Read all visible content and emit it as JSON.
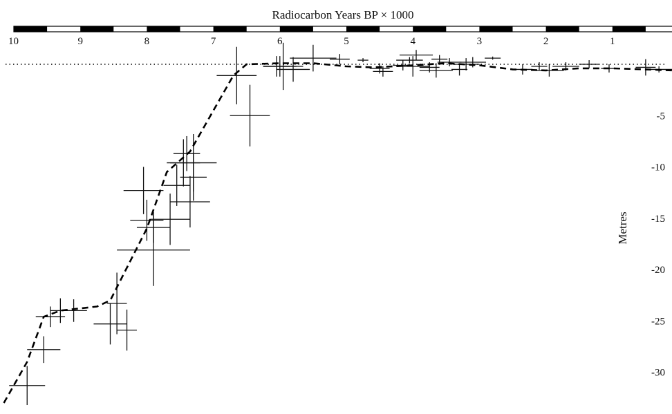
{
  "chart_data": {
    "type": "scatter",
    "title": "",
    "xlabel": "Radiocarbon Years BP × 1000",
    "ylabel": "Metres",
    "xlim": [
      10,
      0
    ],
    "ylim": [
      -32.7,
      0.0
    ],
    "x_ticks": [
      10,
      9,
      8,
      7,
      6,
      5,
      4,
      3,
      2,
      1
    ],
    "y_ticks": [
      -5,
      -10,
      -15,
      -20,
      -25,
      -30
    ],
    "reference_line": {
      "y": 0,
      "style": "dotted"
    },
    "trend_line": {
      "style": "dashed",
      "points": [
        [
          10.15,
          -33.0
        ],
        [
          9.8,
          -29.0
        ],
        [
          9.55,
          -24.6
        ],
        [
          9.3,
          -24.0
        ],
        [
          8.75,
          -23.6
        ],
        [
          8.55,
          -23.0
        ],
        [
          8.0,
          -16.0
        ],
        [
          7.7,
          -10.5
        ],
        [
          7.35,
          -8.5
        ],
        [
          6.7,
          -1.1
        ],
        [
          6.5,
          0.0
        ],
        [
          6.0,
          0.1
        ],
        [
          5.5,
          0.1
        ],
        [
          5.0,
          -0.2
        ],
        [
          4.6,
          -0.3
        ],
        [
          4.0,
          -0.1
        ],
        [
          3.5,
          0.1
        ],
        [
          3.0,
          -0.1
        ],
        [
          2.5,
          -0.5
        ],
        [
          2.0,
          -0.6
        ],
        [
          1.5,
          -0.4
        ],
        [
          1.0,
          -0.4
        ],
        [
          0.5,
          -0.5
        ],
        [
          0.1,
          -0.6
        ]
      ]
    },
    "series": [
      {
        "points": [
          {
            "x": 9.8,
            "y": -31.3,
            "xerr": 0.27,
            "yerr": 1.9
          },
          {
            "x": 9.55,
            "y": -27.8,
            "xerr": 0.25,
            "yerr": 1.3
          },
          {
            "x": 9.45,
            "y": -24.6,
            "xerr": 0.22,
            "yerr": 1.0
          },
          {
            "x": 9.3,
            "y": -24.0,
            "xerr": 0.15,
            "yerr": 1.2
          },
          {
            "x": 9.1,
            "y": -24.0,
            "xerr": 0.2,
            "yerr": 1.1
          },
          {
            "x": 8.55,
            "y": -25.3,
            "xerr": 0.25,
            "yerr": 2.0
          },
          {
            "x": 8.45,
            "y": -23.3,
            "xerr": 0.15,
            "yerr": 3.0
          },
          {
            "x": 8.3,
            "y": -25.9,
            "xerr": 0.15,
            "yerr": 2.0
          },
          {
            "x": 8.05,
            "y": -12.3,
            "xerr": 0.3,
            "yerr": 2.3
          },
          {
            "x": 8.0,
            "y": -15.2,
            "xerr": 0.25,
            "yerr": 2.0
          },
          {
            "x": 7.9,
            "y": -15.9,
            "xerr": 0.25,
            "yerr": 1.5
          },
          {
            "x": 7.9,
            "y": -18.1,
            "xerr": 0.55,
            "yerr": 3.5
          },
          {
            "x": 7.65,
            "y": -15.1,
            "xerr": 0.3,
            "yerr": 2.5
          },
          {
            "x": 7.55,
            "y": -11.8,
            "xerr": 0.2,
            "yerr": 2.0
          },
          {
            "x": 7.45,
            "y": -9.6,
            "xerr": 0.25,
            "yerr": 2.3
          },
          {
            "x": 7.4,
            "y": -8.7,
            "xerr": 0.2,
            "yerr": 1.7
          },
          {
            "x": 7.35,
            "y": -13.4,
            "xerr": 0.3,
            "yerr": 2.5
          },
          {
            "x": 7.3,
            "y": -9.6,
            "xerr": 0.35,
            "yerr": 2.8
          },
          {
            "x": 7.3,
            "y": -11.0,
            "xerr": 0.2,
            "yerr": 2.3
          },
          {
            "x": 6.65,
            "y": -1.1,
            "xerr": 0.3,
            "yerr": 2.8
          },
          {
            "x": 6.45,
            "y": -5.0,
            "xerr": 0.3,
            "yerr": 3.0
          },
          {
            "x": 6.05,
            "y": -0.2,
            "xerr": 0.2,
            "yerr": 1.0
          },
          {
            "x": 6.0,
            "y": -0.2,
            "xerr": 0.25,
            "yerr": 1.0
          },
          {
            "x": 5.95,
            "y": -0.2,
            "xerr": 0.3,
            "yerr": 2.3
          },
          {
            "x": 5.8,
            "y": -0.5,
            "xerr": 0.25,
            "yerr": 1.2
          },
          {
            "x": 5.5,
            "y": 0.6,
            "xerr": 0.35,
            "yerr": 1.3
          },
          {
            "x": 5.1,
            "y": 0.5,
            "xerr": 0.15,
            "yerr": 0.5
          },
          {
            "x": 4.75,
            "y": 0.4,
            "xerr": 0.08,
            "yerr": 0.2
          },
          {
            "x": 4.5,
            "y": -0.4,
            "xerr": 0.15,
            "yerr": 0.5
          },
          {
            "x": 4.45,
            "y": -0.7,
            "xerr": 0.15,
            "yerr": 0.5
          },
          {
            "x": 4.15,
            "y": -0.1,
            "xerr": 0.15,
            "yerr": 0.5
          },
          {
            "x": 4.05,
            "y": 0.4,
            "xerr": 0.2,
            "yerr": 0.3
          },
          {
            "x": 4.0,
            "y": -0.2,
            "xerr": 0.25,
            "yerr": 1.0
          },
          {
            "x": 3.95,
            "y": 0.9,
            "xerr": 0.25,
            "yerr": 0.5
          },
          {
            "x": 3.75,
            "y": -0.3,
            "xerr": 0.15,
            "yerr": 0.5
          },
          {
            "x": 3.65,
            "y": -0.6,
            "xerr": 0.25,
            "yerr": 0.7
          },
          {
            "x": 3.6,
            "y": 0.5,
            "xerr": 0.12,
            "yerr": 0.4
          },
          {
            "x": 3.45,
            "y": 0.2,
            "xerr": 0.18,
            "yerr": 0.4
          },
          {
            "x": 3.3,
            "y": -0.5,
            "xerr": 0.12,
            "yerr": 0.6
          },
          {
            "x": 3.2,
            "y": 0.0,
            "xerr": 0.2,
            "yerr": 0.6
          },
          {
            "x": 3.1,
            "y": 0.2,
            "xerr": 0.2,
            "yerr": 0.5
          },
          {
            "x": 2.8,
            "y": 0.6,
            "xerr": 0.12,
            "yerr": 0.15
          },
          {
            "x": 2.35,
            "y": -0.5,
            "xerr": 0.15,
            "yerr": 0.5
          },
          {
            "x": 2.1,
            "y": -0.2,
            "xerr": 0.12,
            "yerr": 0.4
          },
          {
            "x": 1.95,
            "y": -0.6,
            "xerr": 0.22,
            "yerr": 0.6
          },
          {
            "x": 1.7,
            "y": -0.2,
            "xerr": 0.2,
            "yerr": 0.4
          },
          {
            "x": 1.35,
            "y": 0.0,
            "xerr": 0.15,
            "yerr": 0.4
          },
          {
            "x": 1.05,
            "y": -0.4,
            "xerr": 0.12,
            "yerr": 0.4
          },
          {
            "x": 0.5,
            "y": -0.3,
            "xerr": 0.15,
            "yerr": 0.8
          },
          {
            "x": 0.3,
            "y": -0.5,
            "xerr": 0.2,
            "yerr": 0.3
          },
          {
            "x": 0.05,
            "y": -0.3,
            "xerr": 0.05,
            "yerr": 0.5
          }
        ]
      }
    ]
  }
}
